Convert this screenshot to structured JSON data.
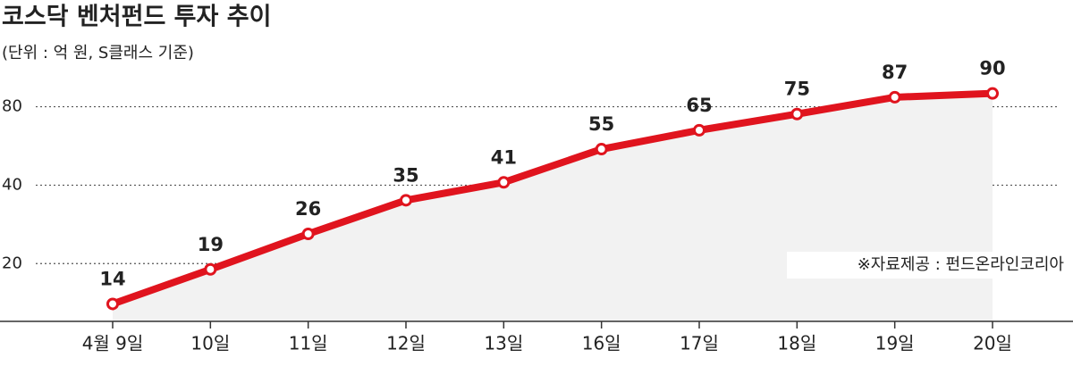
{
  "chart_data": {
    "type": "line",
    "title": "코스닥 벤처펀드 투자 추이",
    "subtitle": "(단위 : 억 원, S클래스 기준)",
    "annotation": "※자료제공 : 펀드온라인코리아",
    "categories": [
      "4월 9일",
      "10일",
      "11일",
      "12일",
      "13일",
      "16일",
      "17일",
      "18일",
      "19일",
      "20일"
    ],
    "values": [
      14,
      19,
      26,
      35,
      41,
      55,
      65,
      75,
      87,
      90
    ],
    "color": "#e0141e",
    "log_scale": true,
    "ylim": [
      12,
      128
    ],
    "yticks": [
      20,
      40,
      80
    ],
    "grid": true
  }
}
